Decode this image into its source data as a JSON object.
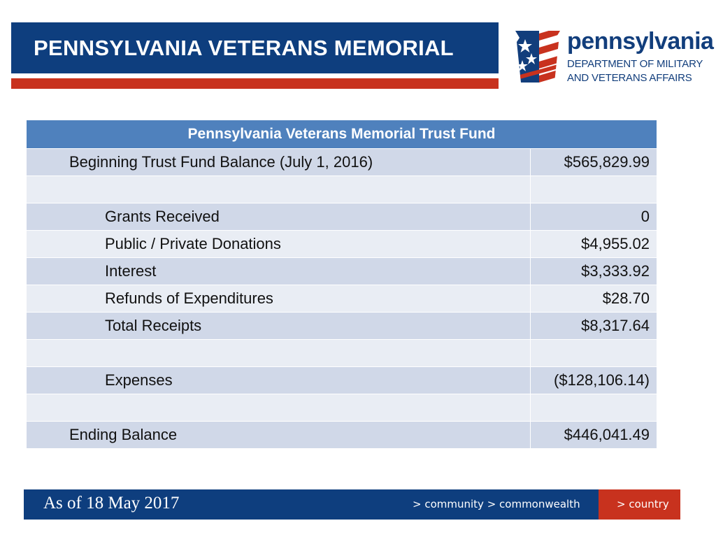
{
  "header": {
    "title": "PENNSYLVANIA VETERANS MEMORIAL",
    "logo": {
      "name": "pennsylvania",
      "dept_line1": "DEPARTMENT OF MILITARY",
      "dept_line2": "AND VETERANS AFFAIRS"
    }
  },
  "table": {
    "title": "Pennsylvania Veterans Memorial Trust Fund",
    "rows": [
      {
        "label": "Beginning Trust Fund Balance (July 1, 2016)",
        "value": "$565,829.99",
        "indent": 0
      },
      {
        "label": "",
        "value": "",
        "indent": 0
      },
      {
        "label": "Grants Received",
        "value": "0",
        "indent": 1
      },
      {
        "label": "Public / Private Donations",
        "value": "$4,955.02",
        "indent": 1
      },
      {
        "label": "Interest",
        "value": "$3,333.92",
        "indent": 1
      },
      {
        "label": "Refunds of Expenditures",
        "value": "$28.70",
        "indent": 1
      },
      {
        "label": "Total Receipts",
        "value": "$8,317.64",
        "indent": 1
      },
      {
        "label": "",
        "value": "",
        "indent": 0
      },
      {
        "label": "Expenses",
        "value": "($128,106.14)",
        "indent": 1
      },
      {
        "label": "",
        "value": "",
        "indent": 0
      },
      {
        "label": "Ending Balance",
        "value": "$446,041.49",
        "indent": 0
      }
    ]
  },
  "footer": {
    "date": "As of 18 May 2017",
    "nav": "> community > commonwealth",
    "country": "> country"
  },
  "colors": {
    "navy": "#0e3e7e",
    "red": "#c8321e",
    "table_header": "#4f81bd",
    "row_band_dark": "#d0d8e8",
    "row_band_light": "#e9edf4"
  },
  "icons": [
    "flag-keystone-logo-icon"
  ]
}
